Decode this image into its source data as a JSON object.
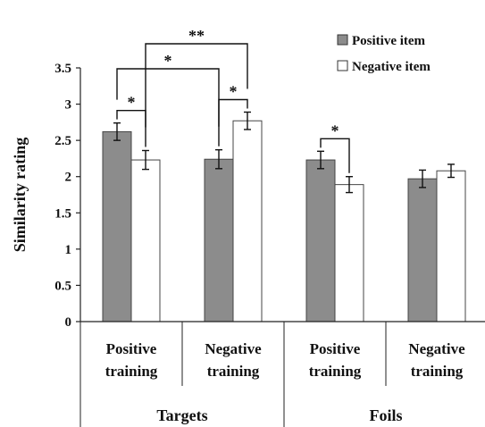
{
  "chart_data": {
    "type": "bar",
    "ylabel": "Similarity rating",
    "ylim": [
      0,
      3.5
    ],
    "yticks": [
      "0",
      "0.5",
      "1",
      "1.5",
      "2",
      "2.5",
      "3",
      "3.5"
    ],
    "categories": [
      {
        "line1": "Positive",
        "line2": "training"
      },
      {
        "line1": "Negative",
        "line2": "training"
      },
      {
        "line1": "Positive",
        "line2": "training"
      },
      {
        "line1": "Negative",
        "line2": "training"
      }
    ],
    "groups": [
      "Targets",
      "Foils"
    ],
    "series": [
      {
        "name": "Positive item",
        "color": "#8c8c8c",
        "values": [
          2.62,
          2.24,
          2.23,
          1.97
        ],
        "errors": [
          0.12,
          0.13,
          0.12,
          0.12
        ]
      },
      {
        "name": "Negative item",
        "color": "#ffffff",
        "values": [
          2.23,
          2.77,
          1.89,
          2.08
        ],
        "errors": [
          0.13,
          0.12,
          0.11,
          0.09
        ]
      }
    ],
    "annotations": [
      {
        "label": "*",
        "type": "pair",
        "category": 0
      },
      {
        "label": "*",
        "type": "pair",
        "category": 1
      },
      {
        "label": "*",
        "type": "pair",
        "category": 2
      },
      {
        "label": "*",
        "type": "span",
        "from": [
          0,
          0
        ],
        "to": [
          1,
          0
        ]
      },
      {
        "label": "**",
        "type": "span",
        "from": [
          0,
          1
        ],
        "to": [
          1,
          1
        ]
      }
    ],
    "legend": "top-right"
  }
}
